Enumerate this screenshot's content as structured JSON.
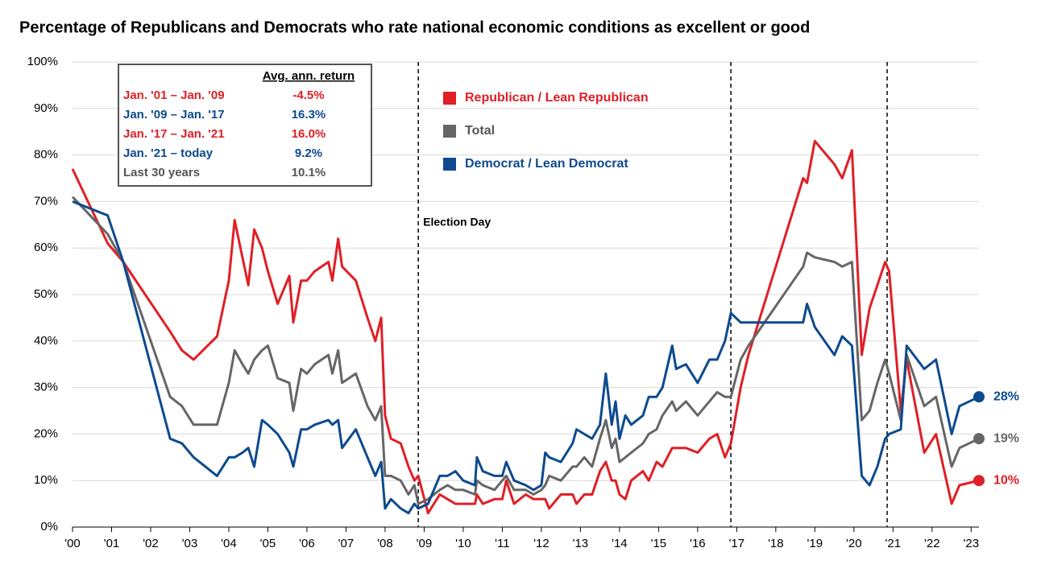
{
  "chart_data": {
    "type": "line",
    "title": "Percentage of Republicans and Democrats who rate national economic conditions as excellent or good",
    "x": [
      2000.0,
      2000.9,
      2001.3,
      2002.5,
      2002.8,
      2003.1,
      2003.7,
      2004.0,
      2004.15,
      2004.35,
      2004.5,
      2004.65,
      2004.85,
      2005.0,
      2005.25,
      2005.55,
      2005.65,
      2005.85,
      2006.0,
      2006.2,
      2006.55,
      2006.65,
      2006.8,
      2006.9,
      2007.25,
      2007.55,
      2007.75,
      2007.9,
      2008.0,
      2008.15,
      2008.4,
      2008.6,
      2008.75,
      2008.85,
      2009.1,
      2009.4,
      2009.6,
      2009.8,
      2010.0,
      2010.3,
      2010.35,
      2010.5,
      2010.8,
      2011.0,
      2011.1,
      2011.3,
      2011.6,
      2011.8,
      2012.0,
      2012.1,
      2012.2,
      2012.5,
      2012.8,
      2012.9,
      2013.1,
      2013.3,
      2013.5,
      2013.65,
      2013.8,
      2013.9,
      2014.0,
      2014.15,
      2014.3,
      2014.6,
      2014.75,
      2014.95,
      2015.1,
      2015.35,
      2015.45,
      2015.7,
      2016.0,
      2016.3,
      2016.5,
      2016.7,
      2016.85,
      2017.1,
      2017.3,
      2018.7,
      2018.8,
      2019.0,
      2019.5,
      2019.7,
      2019.95,
      2020.2,
      2020.4,
      2020.6,
      2020.8,
      2020.9,
      2021.2,
      2021.35,
      2021.8,
      2022.1,
      2022.5,
      2022.7,
      2023.2
    ],
    "series": [
      {
        "name": "Republican / Lean Republican",
        "color": "#e01f26",
        "end_label": "10%",
        "values": [
          77,
          61,
          57,
          42,
          38,
          36,
          41,
          53,
          66,
          58,
          52,
          64,
          60,
          55,
          48,
          54,
          44,
          53,
          53,
          55,
          57,
          53,
          62,
          56,
          53,
          45,
          40,
          45,
          24,
          19,
          18,
          13,
          10,
          11,
          3,
          7,
          6,
          5,
          5,
          5,
          7,
          5,
          6,
          6,
          10,
          5,
          7,
          6,
          6,
          6,
          4,
          7,
          7,
          5,
          7,
          7,
          12,
          14,
          10,
          10,
          7,
          6,
          10,
          12,
          10,
          14,
          13,
          17,
          17,
          17,
          16,
          19,
          20,
          15,
          18,
          30,
          37,
          75,
          74,
          83,
          78,
          75,
          81,
          37,
          47,
          52,
          57,
          55,
          25,
          36,
          16,
          20,
          5,
          9,
          10
        ]
      },
      {
        "name": "Total",
        "color": "#666666",
        "end_label": "19%",
        "values": [
          71,
          63,
          57,
          28,
          26,
          22,
          22,
          31,
          38,
          35,
          33,
          36,
          38,
          39,
          32,
          31,
          25,
          34,
          33,
          35,
          37,
          33,
          38,
          31,
          33,
          26,
          23,
          26,
          11,
          11,
          10,
          7,
          9,
          5,
          6,
          8,
          9,
          8,
          8,
          7,
          10,
          9,
          8,
          10,
          11,
          8,
          8,
          7,
          8,
          9,
          11,
          10,
          13,
          13,
          15,
          13,
          19,
          23,
          17,
          19,
          14,
          15,
          16,
          18,
          20,
          21,
          24,
          27,
          25,
          27,
          24,
          27,
          29,
          28,
          28,
          36,
          39,
          56,
          59,
          58,
          57,
          56,
          57,
          23,
          25,
          31,
          36,
          33,
          23,
          37,
          26,
          28,
          13,
          17,
          19
        ]
      },
      {
        "name": "Democrat / Lean Democrat",
        "color": "#0d4a8f",
        "end_label": "28%",
        "values": [
          70,
          67,
          57,
          19,
          18,
          15,
          11,
          15,
          15,
          16,
          17,
          13,
          23,
          22,
          20,
          16,
          13,
          21,
          21,
          22,
          23,
          22,
          23,
          17,
          21,
          15,
          11,
          14,
          4,
          6,
          4,
          3,
          5,
          4,
          5,
          11,
          11,
          12,
          10,
          9,
          15,
          12,
          11,
          11,
          14,
          10,
          9,
          8,
          9,
          16,
          15,
          14,
          18,
          21,
          20,
          19,
          22,
          33,
          22,
          27,
          19,
          24,
          22,
          24,
          28,
          28,
          30,
          39,
          34,
          35,
          31,
          36,
          36,
          40,
          46,
          44,
          44,
          44,
          48,
          43,
          37,
          41,
          39,
          11,
          9,
          13,
          19,
          20,
          21,
          39,
          34,
          36,
          20,
          26,
          28
        ]
      }
    ],
    "xlim": [
      2000,
      2023.2
    ],
    "ylim": [
      0,
      100
    ],
    "xticks": [
      {
        "value": 2000,
        "label": "'00"
      },
      {
        "value": 2001,
        "label": "'01"
      },
      {
        "value": 2002,
        "label": "'02"
      },
      {
        "value": 2003,
        "label": "'03"
      },
      {
        "value": 2004,
        "label": "'04"
      },
      {
        "value": 2005,
        "label": "'05"
      },
      {
        "value": 2006,
        "label": "'06"
      },
      {
        "value": 2007,
        "label": "'07"
      },
      {
        "value": 2008,
        "label": "'08"
      },
      {
        "value": 2009,
        "label": "'09"
      },
      {
        "value": 2010,
        "label": "'10"
      },
      {
        "value": 2011,
        "label": "'11"
      },
      {
        "value": 2012,
        "label": "'12"
      },
      {
        "value": 2013,
        "label": "'13"
      },
      {
        "value": 2014,
        "label": "'14"
      },
      {
        "value": 2015,
        "label": "'15"
      },
      {
        "value": 2016,
        "label": "'16"
      },
      {
        "value": 2017,
        "label": "'17"
      },
      {
        "value": 2018,
        "label": "'18"
      },
      {
        "value": 2019,
        "label": "'19"
      },
      {
        "value": 2020,
        "label": "'20"
      },
      {
        "value": 2021,
        "label": "'21"
      },
      {
        "value": 2022,
        "label": "'22"
      },
      {
        "value": 2023,
        "label": "'23"
      }
    ],
    "yticks": [
      {
        "value": 0,
        "label": "0%"
      },
      {
        "value": 10,
        "label": "10%"
      },
      {
        "value": 20,
        "label": "20%"
      },
      {
        "value": 30,
        "label": "30%"
      },
      {
        "value": 40,
        "label": "40%"
      },
      {
        "value": 50,
        "label": "50%"
      },
      {
        "value": 60,
        "label": "60%"
      },
      {
        "value": 70,
        "label": "70%"
      },
      {
        "value": 80,
        "label": "80%"
      },
      {
        "value": 90,
        "label": "90%"
      },
      {
        "value": 100,
        "label": "100%"
      }
    ],
    "grid": true,
    "election_lines": [
      2008.85,
      2016.85,
      2020.85
    ],
    "election_label": "Election Day",
    "returns_box": {
      "header": "Avg. ann. return",
      "rows": [
        {
          "period": "Jan. '01 – Jan. '09",
          "value": "-4.5%",
          "color": "#e01f26"
        },
        {
          "period": "Jan. '09 – Jan. '17",
          "value": "16.3%",
          "color": "#0d4a8f"
        },
        {
          "period": "Jan. '17 – Jan. '21",
          "value": "16.0%",
          "color": "#e01f26"
        },
        {
          "period": "Jan. '21 – today",
          "value": "9.2%",
          "color": "#0d4a8f"
        },
        {
          "period": "Last 30 years",
          "value": "10.1%",
          "color": "#555555"
        }
      ]
    }
  }
}
